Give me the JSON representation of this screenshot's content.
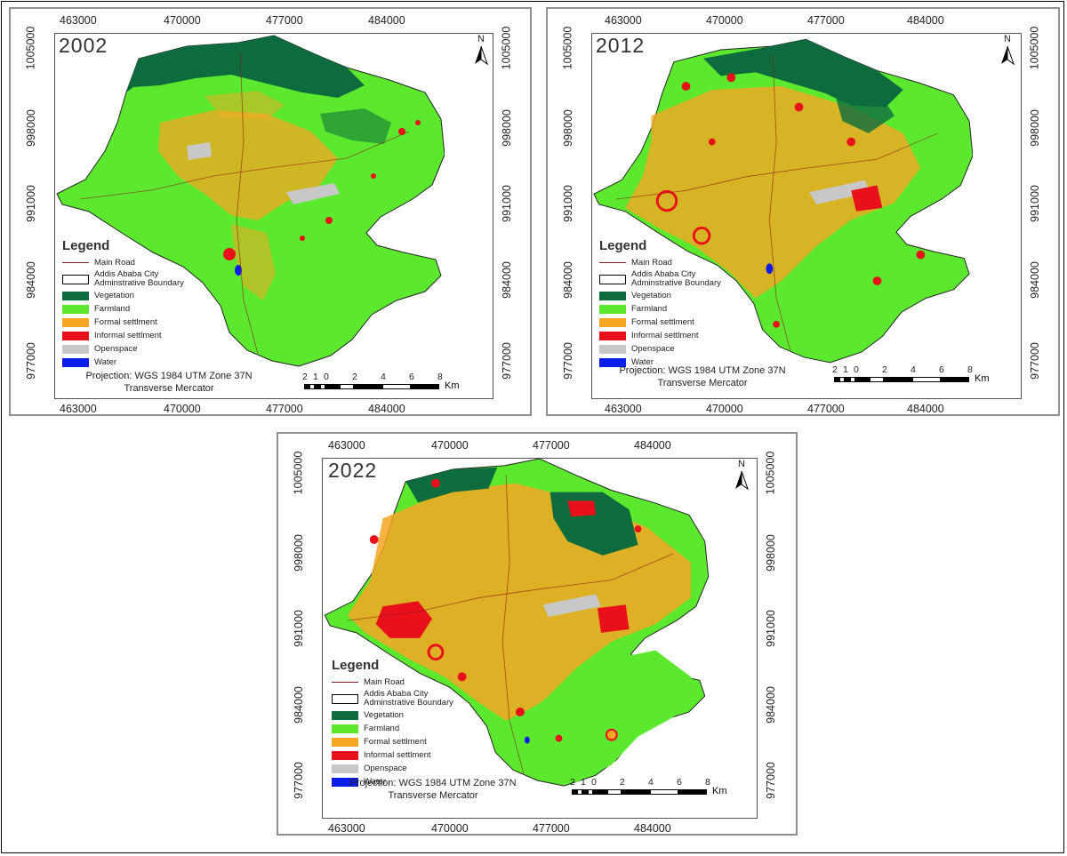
{
  "maps": [
    {
      "year": "2002"
    },
    {
      "year": "2012"
    },
    {
      "year": "2022"
    }
  ],
  "x_ticks": [
    "463000",
    "470000",
    "477000",
    "484000"
  ],
  "y_ticks": [
    "1005000",
    "998000",
    "991000",
    "984000",
    "977000"
  ],
  "north_label": "N",
  "legend": {
    "title": "Legend",
    "items": [
      {
        "label": "Main Road",
        "color": "#8b1a1a",
        "kind": "line"
      },
      {
        "label": "Addis Ababa City\nAdminstrative Boundary",
        "color": "#000000",
        "kind": "outline"
      },
      {
        "label": "Vegetation",
        "color": "#0e6b3e",
        "kind": "fill"
      },
      {
        "label": "Farmland",
        "color": "#5be82e",
        "kind": "fill"
      },
      {
        "label": "Formal settlment",
        "color": "#f5a623",
        "kind": "fill"
      },
      {
        "label": "Informal settlment",
        "color": "#e8101a",
        "kind": "fill"
      },
      {
        "label": "Openspace",
        "color": "#c8c8c8",
        "kind": "fill"
      },
      {
        "label": "Water",
        "color": "#0a1ee8",
        "kind": "fill"
      }
    ]
  },
  "projection": {
    "line1": "Projection: WGS 1984 UTM Zone 37N",
    "line2": "Transverse Mercator"
  },
  "scale": {
    "labels": [
      "2",
      "1",
      "0",
      "2",
      "4",
      "6",
      "8"
    ],
    "unit": "Km"
  }
}
